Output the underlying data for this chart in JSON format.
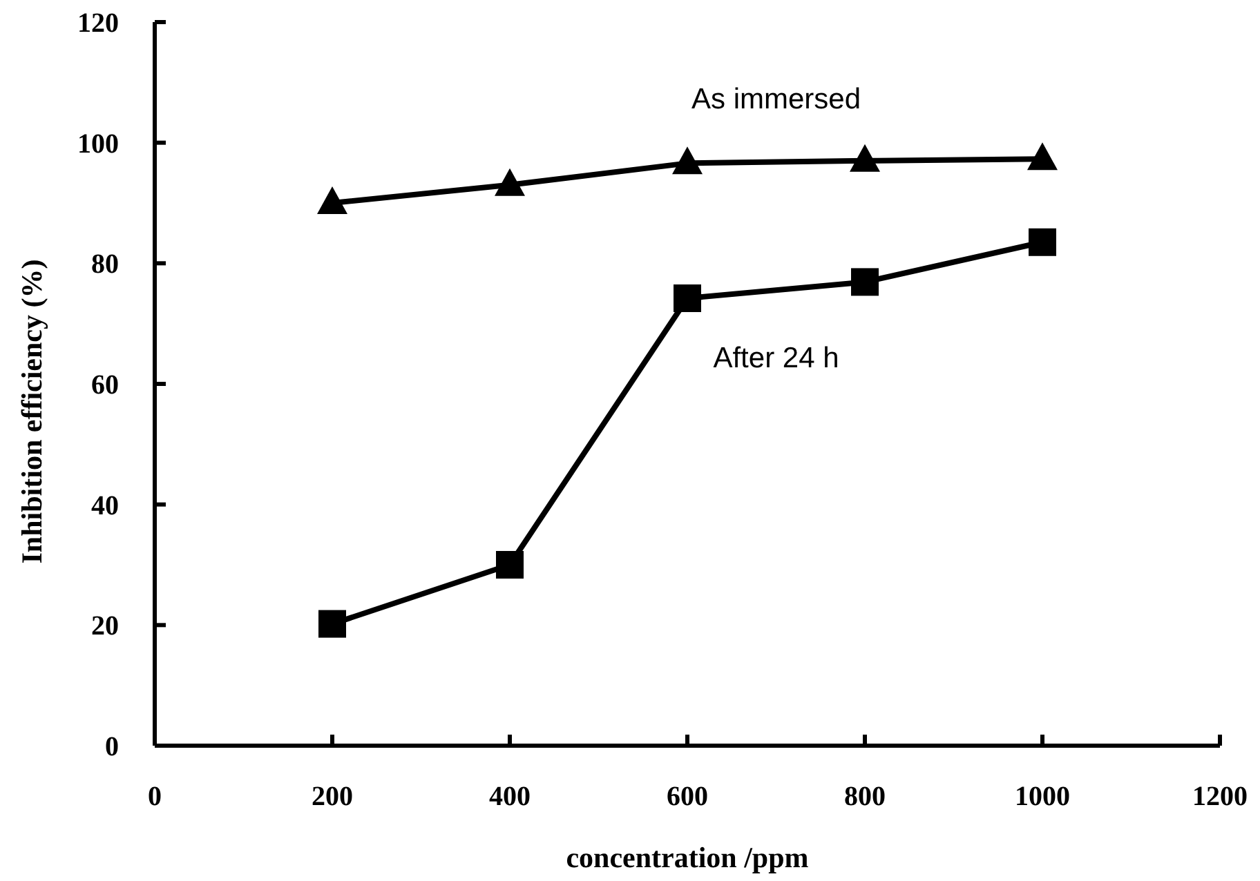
{
  "chart_data": {
    "type": "line",
    "xlabel": "concentration /ppm",
    "ylabel": "Inhibition efficiency (%)",
    "x": [
      200,
      400,
      600,
      800,
      1000
    ],
    "xlim": [
      0,
      1200
    ],
    "xticks": [
      0,
      200,
      400,
      600,
      800,
      1000,
      1200
    ],
    "ylim": [
      0,
      120
    ],
    "yticks": [
      0,
      20,
      40,
      60,
      80,
      100,
      120
    ],
    "line_style": "solid",
    "series": [
      {
        "name": "As immersed",
        "color": "#000000",
        "marker": "triangle",
        "values": [
          90,
          93,
          96.6,
          97,
          97.3
        ]
      },
      {
        "name": "After 24 h",
        "color": "#000000",
        "marker": "square",
        "values": [
          20.2,
          30,
          74.2,
          76.9,
          83.5
        ]
      }
    ]
  }
}
